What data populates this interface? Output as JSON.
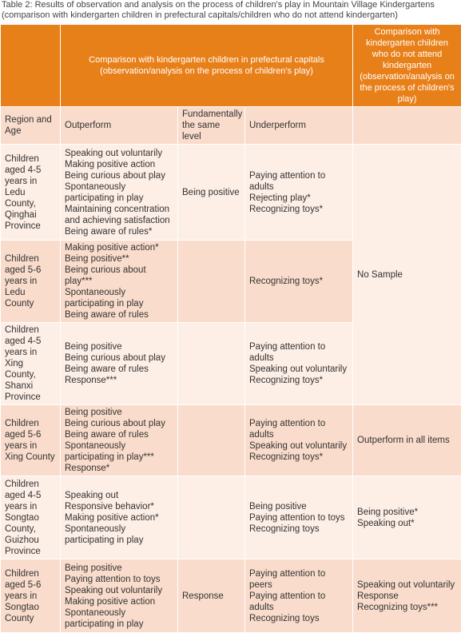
{
  "caption": "Table 2: Results of observation and analysis on the process of children's play in Mountain Village Kindergartens\n(comparison with kindergarten children in prefectural capitals/children who do not attend kindergarten)",
  "header": {
    "group_left": "Comparison with kindergarten children in prefectural capitals\n(observation/analysis on the process of children's play)",
    "group_right": "Comparison with kindergarten children who do not attend kindergarten (observation/analysis on the process of children's play)"
  },
  "columns": {
    "region": "Region and Age",
    "outperform": "Outperform",
    "same": "Fundamentally the same level",
    "underperform": "Underperform"
  },
  "rows": [
    {
      "region": "Children aged 4-5 years in Ledu County, Qinghai Province",
      "outperform": "Speaking out voluntarily\nMaking positive action\nBeing curious about play\nSpontaneously participating in play\nMaintaining concentration and achieving satisfaction\nBeing aware of rules*",
      "same": "Being positive",
      "underperform": "Paying attention to adults\nRejecting play*\nRecognizing toys*"
    },
    {
      "region": "Children aged 5-6 years in Ledu County",
      "outperform": "Making positive action*\nBeing positive**\nBeing curious about play***\nSpontaneously participating in play\nBeing aware of rules",
      "same": "",
      "underperform": "Recognizing toys*"
    },
    {
      "region": "Children aged 4-5 years in Xing County, Shanxi Province",
      "outperform": "Being positive\nBeing curious about play\nBeing aware of rules\nResponse***",
      "same": "",
      "underperform": "Paying attention to adults\nSpeaking out voluntarily\nRecognizing toys*"
    },
    {
      "region": "Children aged 5-6 years in Xing County",
      "outperform": "Being positive\nBeing curious about play\nBeing aware of rules\nSpontaneously participating in play***\nResponse*",
      "same": "",
      "underperform": "Paying attention to adults\nSpeaking out voluntarily\nRecognizing toys*",
      "comparison": "Outperform in all items"
    },
    {
      "region": "Children aged 4-5 years in Songtao County, Guizhou Province",
      "outperform": "Speaking out\nResponsive behavior*\nMaking positive action*\nSpontaneously participating in play",
      "same": "",
      "underperform": "Being positive\nPaying attention to toys\nRecognizing toys",
      "comparison": "Being positive*\nSpeaking out*"
    },
    {
      "region": "Children aged 5-6 years in Songtao County",
      "outperform": "Being positive\nPaying attention to toys\nSpeaking out voluntarily\nMaking positive action\nSpontaneously participating in play",
      "same": "Response",
      "underperform": "Paying attention to peers\nPaying attention to adults\nRecognizing toys",
      "comparison": "Speaking out voluntarily\nResponse\nRecognizing toys***"
    }
  ],
  "no_sample": "No Sample"
}
